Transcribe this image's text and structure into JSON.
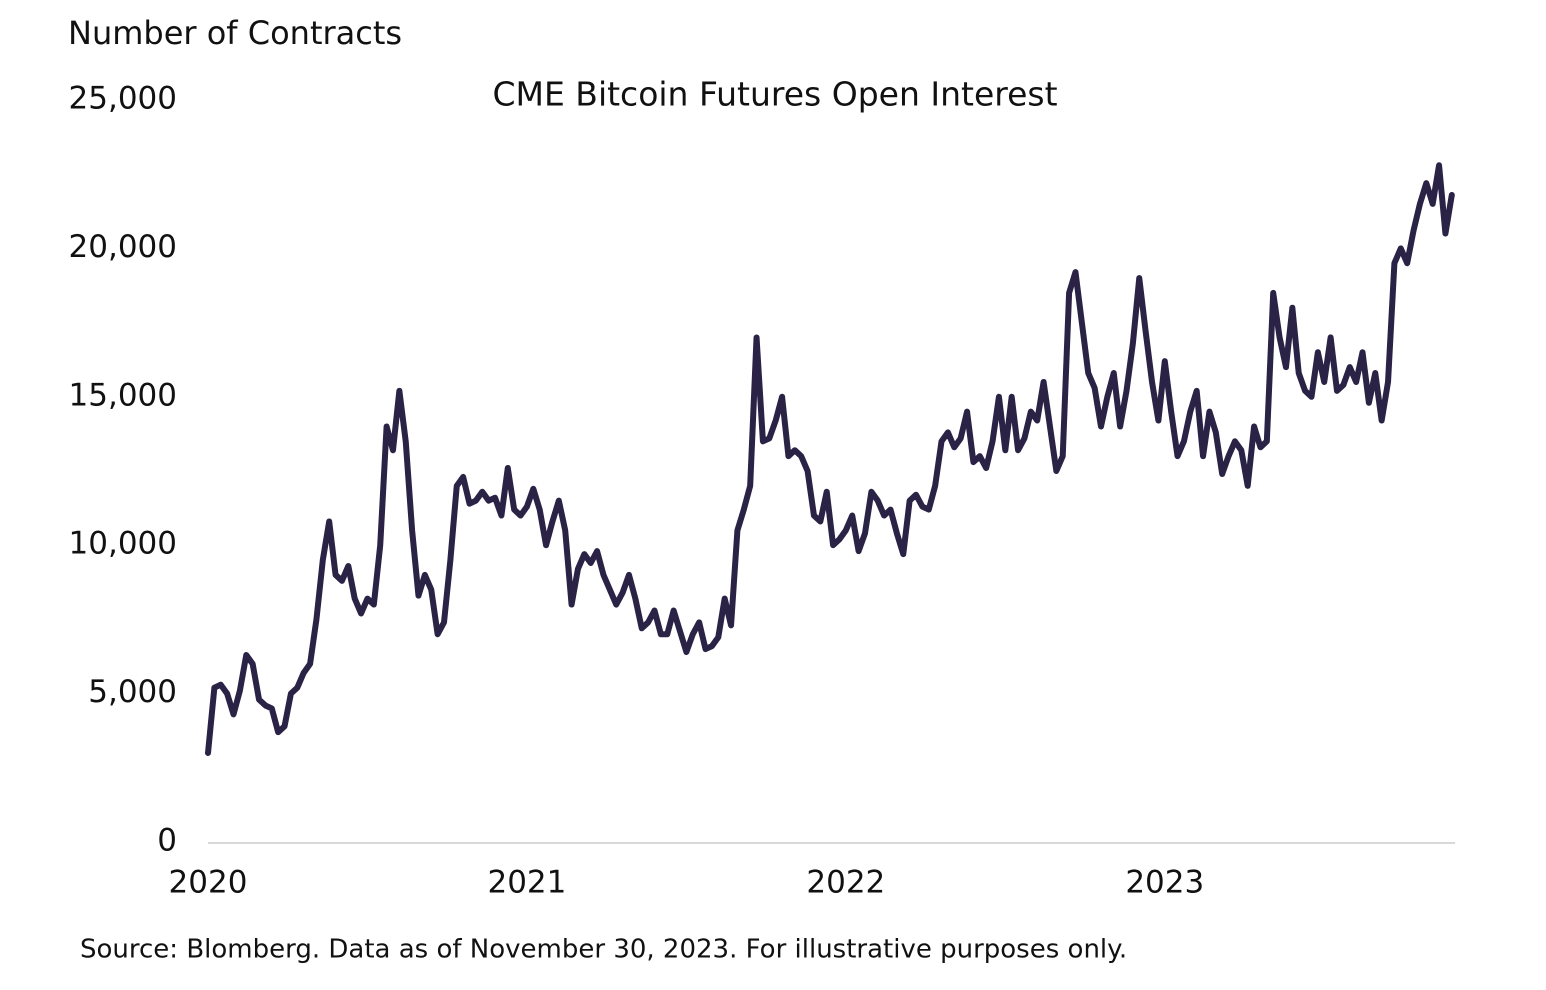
{
  "chart_data": {
    "type": "line",
    "title": "CME Bitcoin Futures Open Interest",
    "y_label": "Number of Contracts",
    "source": "Source: Blomberg. Data as of November 30, 2023. For illustrative purposes only.",
    "xlim": [
      2020,
      2023.91
    ],
    "xticks": [
      2020,
      2021,
      2022,
      2023
    ],
    "ylim": [
      0,
      25000
    ],
    "yticks": [
      0,
      {
        "value": 5000,
        "label": "5,000"
      },
      {
        "value": 10000,
        "label": "10,000"
      },
      {
        "value": 15000,
        "label": "15,000"
      },
      {
        "value": 20000,
        "label": "20,000"
      },
      {
        "value": 25000,
        "label": "25,000"
      }
    ],
    "grid": false,
    "x": [
      2020.0,
      2020.02,
      2020.04,
      2020.06,
      2020.08,
      2020.1,
      2020.12,
      2020.14,
      2020.16,
      2020.18,
      2020.2,
      2020.22,
      2020.24,
      2020.26,
      2020.28,
      2020.3,
      2020.32,
      2020.34,
      2020.36,
      2020.38,
      2020.4,
      2020.42,
      2020.44,
      2020.46,
      2020.48,
      2020.5,
      2020.52,
      2020.54,
      2020.56,
      2020.58,
      2020.6,
      2020.62,
      2020.64,
      2020.66,
      2020.68,
      2020.7,
      2020.72,
      2020.74,
      2020.76,
      2020.78,
      2020.8,
      2020.82,
      2020.84,
      2020.86,
      2020.88,
      2020.9,
      2020.92,
      2020.94,
      2020.96,
      2020.98,
      2021.0,
      2021.02,
      2021.04,
      2021.06,
      2021.08,
      2021.1,
      2021.12,
      2021.14,
      2021.16,
      2021.18,
      2021.2,
      2021.22,
      2021.24,
      2021.26,
      2021.28,
      2021.3,
      2021.32,
      2021.34,
      2021.36,
      2021.38,
      2021.4,
      2021.42,
      2021.44,
      2021.46,
      2021.48,
      2021.5,
      2021.52,
      2021.54,
      2021.56,
      2021.58,
      2021.6,
      2021.62,
      2021.64,
      2021.66,
      2021.68,
      2021.7,
      2021.72,
      2021.74,
      2021.76,
      2021.78,
      2021.8,
      2021.82,
      2021.84,
      2021.86,
      2021.88,
      2021.9,
      2021.92,
      2021.94,
      2021.96,
      2021.98,
      2022.0,
      2022.02,
      2022.04,
      2022.06,
      2022.08,
      2022.1,
      2022.12,
      2022.14,
      2022.16,
      2022.18,
      2022.2,
      2022.22,
      2022.24,
      2022.26,
      2022.28,
      2022.3,
      2022.32,
      2022.34,
      2022.36,
      2022.38,
      2022.4,
      2022.42,
      2022.44,
      2022.46,
      2022.48,
      2022.5,
      2022.52,
      2022.54,
      2022.56,
      2022.58,
      2022.6,
      2022.62,
      2022.64,
      2022.66,
      2022.68,
      2022.7,
      2022.72,
      2022.74,
      2022.76,
      2022.78,
      2022.8,
      2022.82,
      2022.84,
      2022.86,
      2022.88,
      2022.9,
      2022.92,
      2022.94,
      2022.96,
      2022.98,
      2023.0,
      2023.02,
      2023.04,
      2023.06,
      2023.08,
      2023.1,
      2023.12,
      2023.14,
      2023.16,
      2023.18,
      2023.2,
      2023.22,
      2023.24,
      2023.26,
      2023.28,
      2023.3,
      2023.32,
      2023.34,
      2023.36,
      2023.38,
      2023.4,
      2023.42,
      2023.44,
      2023.46,
      2023.48,
      2023.5,
      2023.52,
      2023.54,
      2023.56,
      2023.58,
      2023.6,
      2023.62,
      2023.64,
      2023.66,
      2023.68,
      2023.7,
      2023.72,
      2023.74,
      2023.76,
      2023.78,
      2023.8,
      2023.82,
      2023.84,
      2023.86,
      2023.88,
      2023.9
    ],
    "series": [
      {
        "name": "Open Interest",
        "color": "#2a2346",
        "values": [
          3000,
          5200,
          5300,
          5000,
          4300,
          5100,
          6300,
          6000,
          4800,
          4600,
          4500,
          3700,
          3900,
          5000,
          5200,
          5700,
          6000,
          7500,
          9500,
          10800,
          9000,
          8800,
          9300,
          8200,
          7700,
          8200,
          8000,
          10000,
          14000,
          13200,
          15200,
          13500,
          10500,
          8300,
          9000,
          8500,
          7000,
          7400,
          9500,
          12000,
          12300,
          11400,
          11500,
          11800,
          11500,
          11600,
          11000,
          12600,
          11200,
          11000,
          11300,
          11900,
          11200,
          10000,
          10800,
          11500,
          10500,
          8000,
          9200,
          9700,
          9400,
          9800,
          9000,
          8500,
          8000,
          8400,
          9000,
          8200,
          7200,
          7400,
          7800,
          7000,
          7000,
          7800,
          7100,
          6400,
          7000,
          7400,
          6500,
          6600,
          6900,
          8200,
          7300,
          10500,
          11200,
          12000,
          17000,
          13500,
          13600,
          14200,
          15000,
          13000,
          13200,
          13000,
          12500,
          11000,
          10800,
          11800,
          10000,
          10200,
          10500,
          11000,
          9800,
          10400,
          11800,
          11500,
          11000,
          11200,
          10400,
          9700,
          11500,
          11700,
          11300,
          11200,
          12000,
          13500,
          13800,
          13300,
          13600,
          14500,
          12800,
          13000,
          12600,
          13500,
          15000,
          13200,
          15000,
          13200,
          13600,
          14500,
          14200,
          15500,
          14000,
          12500,
          13000,
          18500,
          19200,
          17500,
          15800,
          15300,
          14000,
          15000,
          15800,
          14000,
          15200,
          16800,
          19000,
          17200,
          15500,
          14200,
          16200,
          14500,
          13000,
          13500,
          14500,
          15200,
          13000,
          14500,
          13800,
          12400,
          13000,
          13500,
          13200,
          12000,
          14000,
          13300,
          13500,
          18500,
          17000,
          16000,
          18000,
          15800,
          15200,
          15000,
          16500,
          15500,
          17000,
          15200,
          15400,
          16000,
          15500,
          16500,
          14800,
          15800,
          14200,
          15500,
          19500,
          20000,
          19500,
          20600,
          21500,
          22200,
          21500,
          22800,
          20500,
          21800
        ]
      }
    ]
  }
}
